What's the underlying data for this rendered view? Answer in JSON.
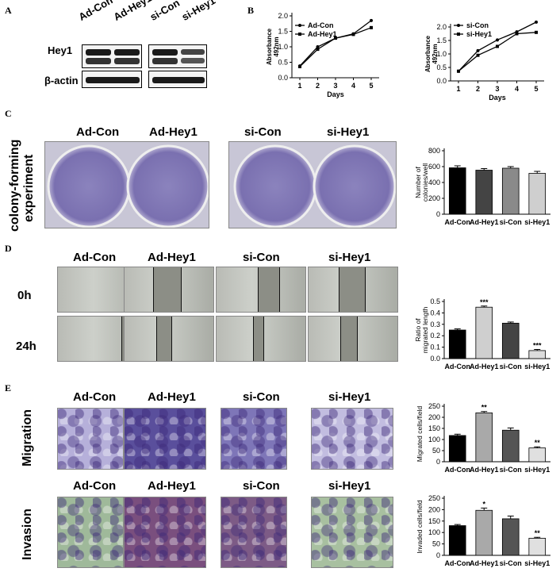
{
  "panels": {
    "A": "A",
    "B": "B",
    "C": "C",
    "D": "D",
    "E": "E"
  },
  "panelA": {
    "lanes_left": [
      "Ad-Con",
      "Ad-Hey1"
    ],
    "lanes_right": [
      "si-Con",
      "si-Hey1"
    ],
    "rows": [
      "Hey1",
      "β-actin"
    ]
  },
  "panelC": {
    "side_label_1": "colony-forming",
    "side_label_2": "experiment",
    "columns": [
      "Ad-Con",
      "Ad-Hey1",
      "si-Con",
      "si-Hey1"
    ]
  },
  "panelD": {
    "columns": [
      "Ad-Con",
      "Ad-Hey1",
      "si-Con",
      "si-Hey1"
    ],
    "rows": [
      "0h",
      "24h"
    ]
  },
  "panelE": {
    "columns": [
      "Ad-Con",
      "Ad-Hey1",
      "si-Con",
      "si-Hey1"
    ],
    "rows": [
      "Migration",
      "Invasion"
    ]
  },
  "chart_data": [
    {
      "id": "absorbance-ad",
      "type": "line",
      "ylabel": "Absorbance 492nm",
      "xlabel": "Days",
      "x": [
        1,
        2,
        3,
        4,
        5
      ],
      "ylim": [
        0,
        2.0
      ],
      "yticks": [
        "0.0",
        "0.5",
        "1.0",
        "1.5",
        "2.0"
      ],
      "series": [
        {
          "name": "Ad-Con",
          "values": [
            0.38,
            1.0,
            1.28,
            1.42,
            1.85
          ]
        },
        {
          "name": "Ad-Hey1",
          "values": [
            0.36,
            0.92,
            1.28,
            1.4,
            1.62
          ]
        }
      ]
    },
    {
      "id": "absorbance-si",
      "type": "line",
      "ylabel": "Absorbance 492nm",
      "xlabel": "Days",
      "x": [
        1,
        2,
        3,
        4,
        5
      ],
      "ylim": [
        0,
        2.0
      ],
      "yticks": [
        "0.0",
        "0.5",
        "1.0",
        "1.5",
        "2.0"
      ],
      "series": [
        {
          "name": "si-Con",
          "values": [
            0.36,
            1.12,
            1.52,
            1.82,
            2.18
          ]
        },
        {
          "name": "si-Hey1",
          "values": [
            0.36,
            0.95,
            1.28,
            1.75,
            1.8
          ]
        }
      ]
    },
    {
      "id": "colonies",
      "type": "bar",
      "ylabel": "Number of colonies/well",
      "categories": [
        "Ad-Con",
        "Ad-Hey1",
        "si-Con",
        "si-Hey1"
      ],
      "values": [
        585,
        555,
        580,
        515
      ],
      "errors": [
        25,
        20,
        20,
        25
      ],
      "ylim": [
        0,
        800
      ],
      "yticks": [
        "0",
        "200",
        "400",
        "600",
        "800"
      ],
      "colors": [
        "#000000",
        "#444444",
        "#8a8a8a",
        "#cfcfcf"
      ],
      "sig": [
        "",
        "",
        "",
        ""
      ]
    },
    {
      "id": "migration-ratio",
      "type": "bar",
      "ylabel": "Ratio of migrated length",
      "categories": [
        "Ad-Con",
        "Ad-Hey1",
        "si-Con",
        "si-Hey1"
      ],
      "values": [
        0.25,
        0.45,
        0.31,
        0.07
      ],
      "errors": [
        0.01,
        0.01,
        0.01,
        0.01
      ],
      "ylim": [
        0,
        0.5
      ],
      "yticks": [
        "0.0",
        "0.1",
        "0.2",
        "0.3",
        "0.4",
        "0.5"
      ],
      "colors": [
        "#000000",
        "#cfcfcf",
        "#444444",
        "#dcdcdc"
      ],
      "sig": [
        "",
        "***",
        "",
        "***"
      ]
    },
    {
      "id": "migrated-cells",
      "type": "bar",
      "ylabel": "Migrated cells/field",
      "categories": [
        "Ad-Con",
        "Ad-Hey1",
        "si-Con",
        "si-Hey1"
      ],
      "values": [
        118,
        220,
        142,
        62
      ],
      "errors": [
        6,
        6,
        10,
        5
      ],
      "ylim": [
        0,
        250
      ],
      "yticks": [
        "0",
        "50",
        "100",
        "150",
        "200",
        "250"
      ],
      "colors": [
        "#000000",
        "#a9a9a9",
        "#555555",
        "#e0e0e0"
      ],
      "sig": [
        "",
        "**",
        "",
        "**"
      ]
    },
    {
      "id": "invaded-cells",
      "type": "bar",
      "ylabel": "Invaded cells/field",
      "categories": [
        "Ad-Con",
        "Ad-Hey1",
        "si-Con",
        "si-Hey1"
      ],
      "values": [
        130,
        197,
        160,
        75
      ],
      "errors": [
        5,
        10,
        12,
        4
      ],
      "ylim": [
        0,
        250
      ],
      "yticks": [
        "0",
        "50",
        "100",
        "150",
        "200",
        "250"
      ],
      "colors": [
        "#000000",
        "#a9a9a9",
        "#555555",
        "#e0e0e0"
      ],
      "sig": [
        "",
        "*",
        "",
        "**"
      ]
    }
  ]
}
